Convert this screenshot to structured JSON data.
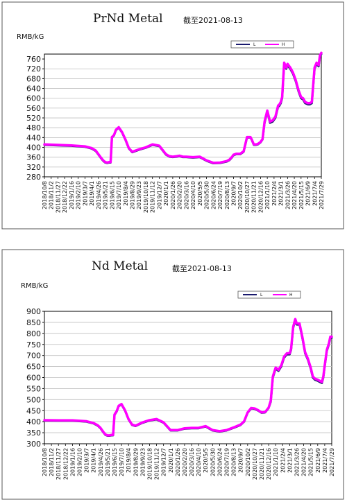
{
  "charts": [
    {
      "title": "PrNd Metal",
      "subtitle": "截至2021-08-13",
      "unit": "RMB/kG",
      "legend": {
        "l": "L",
        "h": "H"
      }
    },
    {
      "title": "Nd Metal",
      "subtitle": "截至2021-08-13",
      "unit": "RMB/kG",
      "legend": {
        "l": "L",
        "h": "H"
      }
    }
  ],
  "colors": {
    "series_l": "#1a1a6e",
    "series_h": "#ff00ff"
  },
  "chart_data": [
    {
      "type": "line",
      "title": "PrNd Metal",
      "subtitle": "截至2021-08-13",
      "ylabel": "RMB/kG",
      "ylim": [
        280,
        780
      ],
      "yticks": [
        280,
        320,
        360,
        400,
        440,
        480,
        520,
        560,
        600,
        640,
        680,
        720,
        760
      ],
      "xticks": [
        "2018/10/8",
        "2018/11/2",
        "2018/11/27",
        "2018/12/22",
        "2019/1/16",
        "2019/2/10",
        "2019/3/7",
        "2019/4/1",
        "2019/4/26",
        "2019/5/21",
        "2019/6/15",
        "2019/7/10",
        "2019/8/4",
        "2019/8/29",
        "2019/9/23",
        "2019/10/18",
        "2019/11/12",
        "2019/12/7",
        "2020/1/1",
        "2020/1/26",
        "2020/2/20",
        "2020/3/16",
        "2020/4/10",
        "2020/5/5",
        "2020/5/30",
        "2020/6/24",
        "2020/7/19",
        "2020/8/13",
        "2020/9/7",
        "2020/10/2",
        "2020/10/27",
        "2020/11/21",
        "2020/12/16",
        "2021/1/10",
        "2021/2/4",
        "2021/3/1",
        "2021/3/26",
        "2021/4/20",
        "2021/5/15",
        "2021/6/9",
        "2021/7/4",
        "2021/7/29"
      ],
      "grid": true,
      "legend_position": "top-right",
      "series": [
        {
          "name": "L",
          "x": [
            0,
            2,
            4,
            6,
            7,
            7.6,
            8,
            8.4,
            8.7,
            9,
            9.3,
            9.6,
            9.8,
            10,
            10.3,
            10.6,
            11,
            11.5,
            12,
            12.5,
            13,
            14,
            15,
            16,
            17,
            18,
            18.5,
            19,
            19.6,
            20,
            20.5,
            21,
            22,
            23,
            24,
            25,
            26,
            27,
            27.4,
            27.8,
            28,
            28.4,
            29,
            29.5,
            30,
            30.5,
            30.7,
            31,
            31.3,
            31.6,
            32,
            32.3,
            32.6,
            33,
            33.4,
            33.8,
            34.2,
            34.6,
            34.8,
            35,
            35.2,
            35.5,
            35.8,
            36,
            36.4,
            36.8,
            37.2,
            37.6,
            38,
            38.3,
            38.6,
            39,
            39.3,
            39.6,
            39.8,
            40,
            40.3,
            40.6,
            40.8,
            41
          ],
          "values": [
            410,
            408,
            406,
            402,
            395,
            385,
            370,
            355,
            345,
            338,
            336,
            338,
            338,
            440,
            448,
            470,
            480,
            460,
            430,
            395,
            380,
            390,
            398,
            410,
            405,
            370,
            362,
            360,
            362,
            364,
            360,
            360,
            358,
            360,
            345,
            335,
            336,
            342,
            348,
            360,
            368,
            372,
            372,
            382,
            440,
            440,
            430,
            410,
            410,
            412,
            420,
            432,
            500,
            545,
            500,
            505,
            520,
            565,
            570,
            580,
            600,
            740,
            720,
            735,
            720,
            700,
            670,
            630,
            600,
            595,
            580,
            575,
            575,
            580,
            650,
            720,
            740,
            730,
            770,
            780
          ]
        },
        {
          "name": "H",
          "x": [
            0,
            2,
            4,
            6,
            7,
            7.6,
            8,
            8.4,
            8.7,
            9,
            9.3,
            9.6,
            9.8,
            10,
            10.3,
            10.6,
            11,
            11.5,
            12,
            12.5,
            13,
            14,
            15,
            16,
            17,
            18,
            18.5,
            19,
            19.6,
            20,
            20.5,
            21,
            22,
            23,
            24,
            25,
            26,
            27,
            27.4,
            27.8,
            28,
            28.4,
            29,
            29.5,
            30,
            30.5,
            30.7,
            31,
            31.3,
            31.6,
            32,
            32.3,
            32.6,
            33,
            33.4,
            33.8,
            34.2,
            34.6,
            34.8,
            35,
            35.2,
            35.5,
            35.8,
            36,
            36.4,
            36.8,
            37.2,
            37.6,
            38,
            38.3,
            38.6,
            39,
            39.3,
            39.6,
            39.8,
            40,
            40.3,
            40.6,
            40.8,
            41
          ],
          "values": [
            412,
            410,
            408,
            404,
            397,
            387,
            372,
            357,
            347,
            340,
            338,
            340,
            340,
            442,
            450,
            472,
            482,
            462,
            432,
            397,
            382,
            392,
            400,
            412,
            407,
            372,
            364,
            362,
            364,
            366,
            362,
            362,
            360,
            362,
            347,
            337,
            338,
            344,
            350,
            362,
            370,
            374,
            374,
            384,
            442,
            442,
            432,
            412,
            412,
            414,
            422,
            434,
            505,
            550,
            505,
            510,
            525,
            570,
            575,
            585,
            605,
            745,
            725,
            740,
            725,
            705,
            675,
            635,
            605,
            600,
            585,
            580,
            580,
            585,
            655,
            725,
            745,
            735,
            775,
            785
          ]
        }
      ]
    },
    {
      "type": "line",
      "title": "Nd Metal",
      "subtitle": "截至2021-08-13",
      "ylabel": "RMB/kG",
      "ylim": [
        300,
        900
      ],
      "yticks": [
        300,
        350,
        400,
        450,
        500,
        550,
        600,
        650,
        700,
        750,
        800,
        850,
        900
      ],
      "xticks": [
        "2018/10/8",
        "2018/11/2",
        "2018/11/27",
        "2018/12/22",
        "2019/1/16",
        "2019/2/10",
        "2019/3/7",
        "2019/4/1",
        "2019/4/26",
        "2019/5/21",
        "2019/6/15",
        "2019/7/10",
        "2019/8/4",
        "2019/8/29",
        "2019/9/23",
        "2019/10/18",
        "2019/11/12",
        "2019/12/7",
        "2020/1/1",
        "2020/1/26",
        "2020/2/20",
        "2020/3/16",
        "2020/4/10",
        "2020/5/5",
        "2020/5/30",
        "2020/6/24",
        "2020/7/19",
        "2020/8/13",
        "2020/9/7",
        "2020/10/2",
        "2020/10/27",
        "2020/11/21",
        "2020/12/16",
        "2021/1/10",
        "2021/2/4",
        "2021/3/1",
        "2021/3/26",
        "2021/4/20",
        "2021/5/15",
        "2021/6/9",
        "2021/7/4",
        "2021/7/29"
      ],
      "grid": true,
      "legend_position": "top-right",
      "series": [
        {
          "name": "L",
          "x": [
            0,
            2,
            4,
            6,
            7,
            7.6,
            8,
            8.4,
            8.7,
            9,
            9.3,
            9.6,
            9.8,
            10,
            10.3,
            10.6,
            11,
            11.5,
            12,
            12.5,
            13,
            14,
            15,
            16,
            17,
            18,
            19,
            20,
            21,
            22,
            23,
            24,
            25,
            26,
            27,
            28,
            28.5,
            29,
            29.5,
            30,
            30.5,
            31,
            31.5,
            32,
            32.3,
            32.6,
            33,
            33.4,
            33.8,
            34.2,
            34.6,
            35,
            35.2,
            35.5,
            35.8,
            36,
            36.4,
            36.8,
            37.2,
            37.6,
            38,
            38.3,
            38.6,
            39,
            39.3,
            39.6,
            39.8,
            40,
            40.3,
            40.6,
            40.8,
            41
          ],
          "values": [
            405,
            404,
            404,
            400,
            392,
            382,
            370,
            352,
            340,
            336,
            336,
            338,
            338,
            430,
            445,
            470,
            478,
            450,
            410,
            385,
            380,
            395,
            405,
            410,
            395,
            360,
            360,
            368,
            370,
            370,
            378,
            360,
            355,
            360,
            372,
            385,
            400,
            440,
            460,
            458,
            450,
            440,
            442,
            462,
            490,
            600,
            640,
            630,
            650,
            690,
            705,
            705,
            725,
            825,
            860,
            840,
            840,
            780,
            710,
            680,
            640,
            600,
            590,
            585,
            580,
            575,
            600,
            650,
            720,
            750,
            780,
            780
          ]
        },
        {
          "name": "H",
          "x": [
            0,
            2,
            4,
            6,
            7,
            7.6,
            8,
            8.4,
            8.7,
            9,
            9.3,
            9.6,
            9.8,
            10,
            10.3,
            10.6,
            11,
            11.5,
            12,
            12.5,
            13,
            14,
            15,
            16,
            17,
            18,
            19,
            20,
            21,
            22,
            23,
            24,
            25,
            26,
            27,
            28,
            28.5,
            29,
            29.5,
            30,
            30.5,
            31,
            31.5,
            32,
            32.3,
            32.6,
            33,
            33.4,
            33.8,
            34.2,
            34.6,
            35,
            35.2,
            35.5,
            35.8,
            36,
            36.4,
            36.8,
            37.2,
            37.6,
            38,
            38.3,
            38.6,
            39,
            39.3,
            39.6,
            39.8,
            40,
            40.3,
            40.6,
            40.8,
            41
          ],
          "values": [
            407,
            406,
            406,
            402,
            394,
            384,
            372,
            354,
            342,
            338,
            338,
            340,
            340,
            432,
            447,
            472,
            480,
            452,
            412,
            387,
            382,
            397,
            407,
            412,
            397,
            362,
            362,
            370,
            372,
            372,
            380,
            362,
            357,
            362,
            374,
            387,
            402,
            442,
            462,
            460,
            452,
            442,
            444,
            464,
            495,
            605,
            645,
            635,
            655,
            695,
            710,
            710,
            730,
            830,
            865,
            845,
            845,
            785,
            715,
            685,
            645,
            605,
            595,
            590,
            585,
            580,
            605,
            655,
            725,
            755,
            785,
            785
          ]
        }
      ]
    }
  ]
}
